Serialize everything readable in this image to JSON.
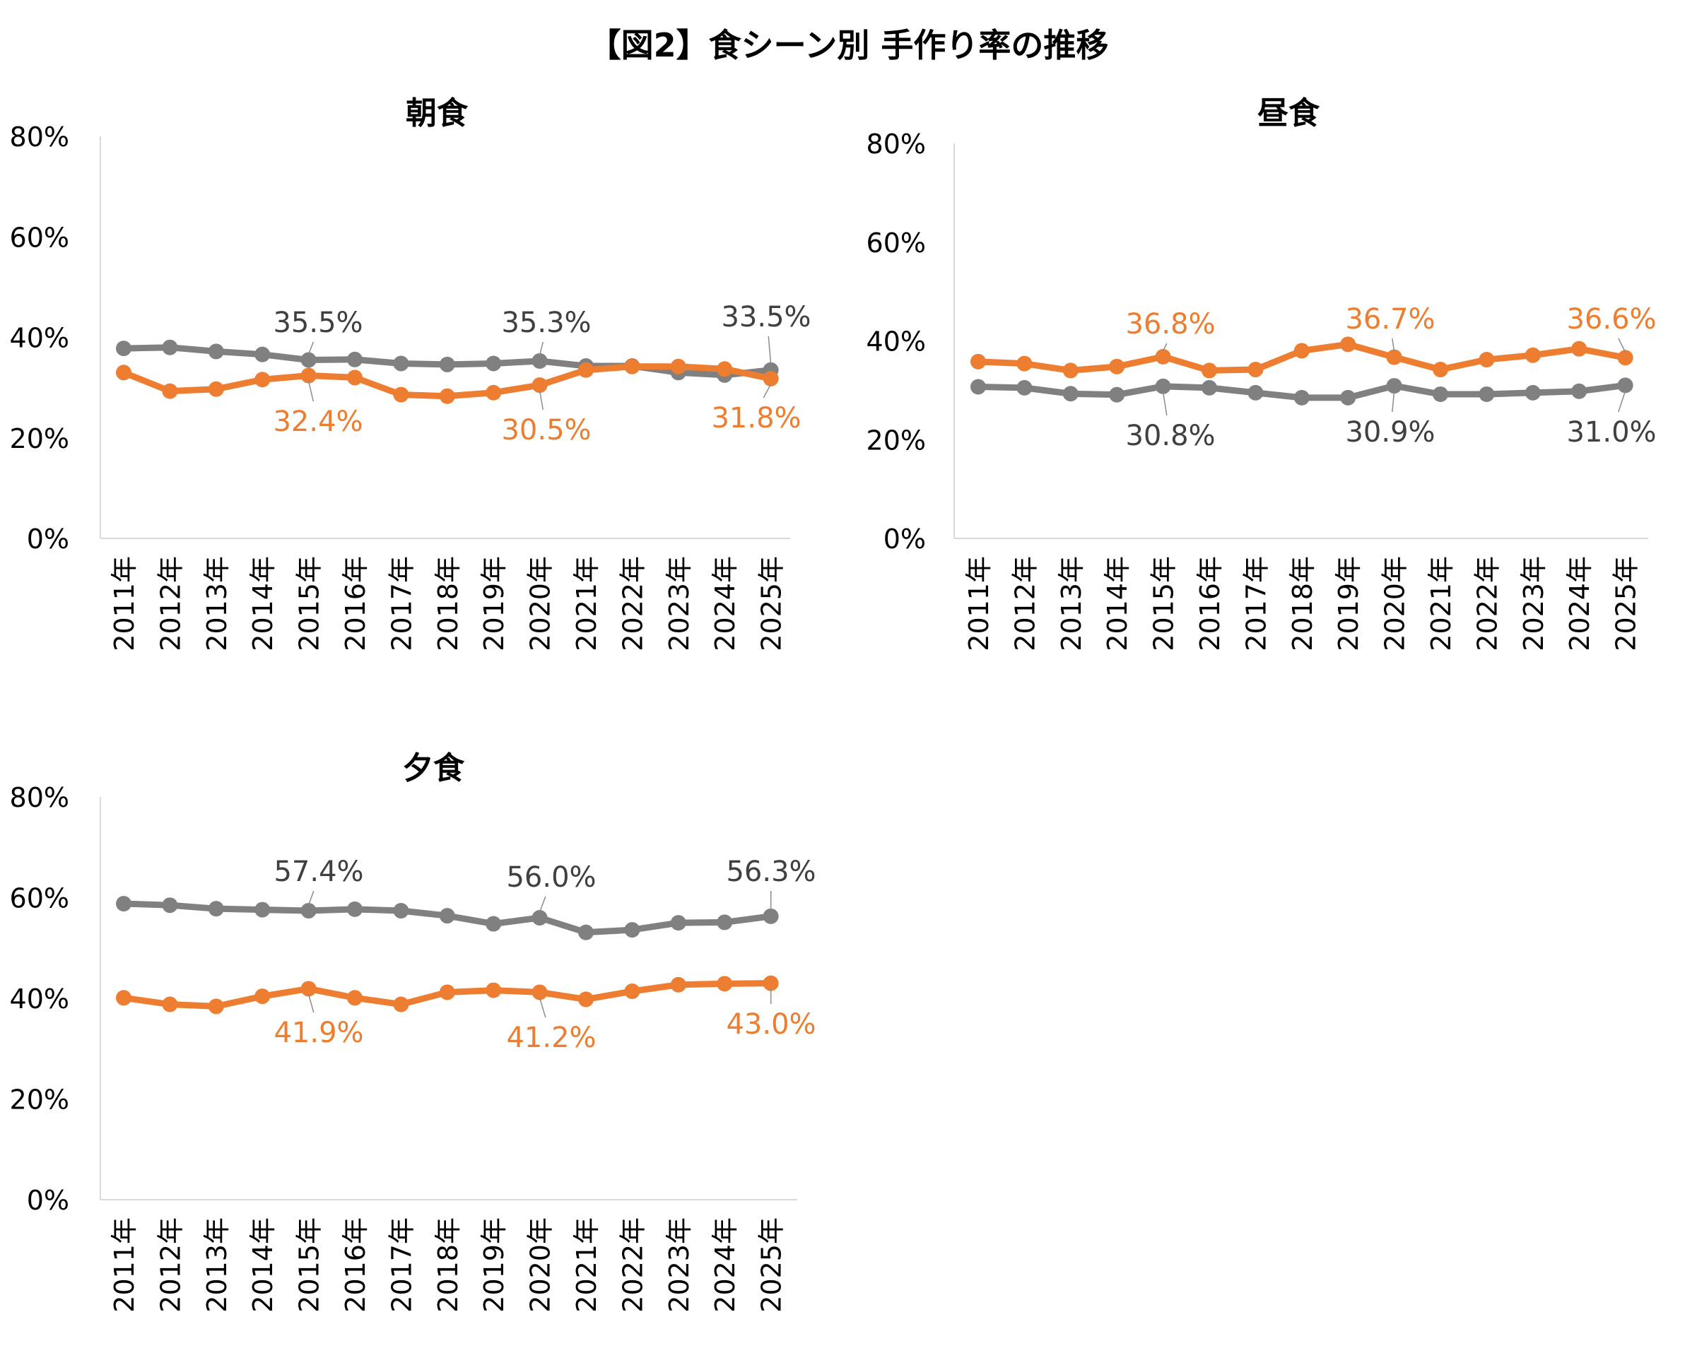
{
  "title": "【図2】食シーン別 手作り率の推移",
  "colors": {
    "gray": "#808080",
    "orange": "#ED7D31",
    "axis": "#d9d9d9",
    "text": "#404040"
  },
  "chart_data": [
    {
      "type": "line",
      "title": "朝食",
      "categories": [
        "2011年",
        "2012年",
        "2013年",
        "2014年",
        "2015年",
        "2016年",
        "2017年",
        "2018年",
        "2019年",
        "2020年",
        "2021年",
        "2022年",
        "2023年",
        "2024年",
        "2025年"
      ],
      "ylim": [
        0,
        80
      ],
      "yticks": [
        "0%",
        "20%",
        "40%",
        "60%",
        "80%"
      ],
      "series": [
        {
          "name": "gray",
          "values": [
            37.8,
            38.0,
            37.2,
            36.6,
            35.5,
            35.6,
            34.8,
            34.6,
            34.8,
            35.3,
            34.3,
            34.3,
            33.0,
            32.5,
            33.5
          ],
          "labels": [
            {
              "index": 4,
              "text": "35.5%"
            },
            {
              "index": 9,
              "text": "35.3%"
            },
            {
              "index": 14,
              "text": "33.5%"
            }
          ]
        },
        {
          "name": "orange",
          "values": [
            33.0,
            29.3,
            29.7,
            31.6,
            32.4,
            32.0,
            28.6,
            28.3,
            29.0,
            30.5,
            33.5,
            34.2,
            34.2,
            33.7,
            31.8
          ],
          "labels": [
            {
              "index": 4,
              "text": "32.4%"
            },
            {
              "index": 9,
              "text": "30.5%"
            },
            {
              "index": 14,
              "text": "31.8%"
            }
          ]
        }
      ]
    },
    {
      "type": "line",
      "title": "昼食",
      "categories": [
        "2011年",
        "2012年",
        "2013年",
        "2014年",
        "2015年",
        "2016年",
        "2017年",
        "2018年",
        "2019年",
        "2020年",
        "2021年",
        "2022年",
        "2023年",
        "2024年",
        "2025年"
      ],
      "ylim": [
        0,
        80
      ],
      "yticks": [
        "0%",
        "20%",
        "40%",
        "60%",
        "80%"
      ],
      "series": [
        {
          "name": "orange",
          "values": [
            35.8,
            35.4,
            34.0,
            34.8,
            36.8,
            34.0,
            34.2,
            38.0,
            39.3,
            36.7,
            34.2,
            36.2,
            37.1,
            38.4,
            36.6
          ],
          "labels": [
            {
              "index": 4,
              "text": "36.8%"
            },
            {
              "index": 9,
              "text": "36.7%"
            },
            {
              "index": 14,
              "text": "36.6%"
            }
          ]
        },
        {
          "name": "gray",
          "values": [
            30.7,
            30.5,
            29.3,
            29.1,
            30.8,
            30.5,
            29.5,
            28.5,
            28.5,
            30.9,
            29.2,
            29.2,
            29.5,
            29.8,
            31.0
          ],
          "labels": [
            {
              "index": 4,
              "text": "30.8%"
            },
            {
              "index": 9,
              "text": "30.9%"
            },
            {
              "index": 14,
              "text": "31.0%"
            }
          ]
        }
      ]
    },
    {
      "type": "line",
      "title": "夕食",
      "categories": [
        "2011年",
        "2012年",
        "2013年",
        "2014年",
        "2015年",
        "2016年",
        "2017年",
        "2018年",
        "2019年",
        "2020年",
        "2021年",
        "2022年",
        "2023年",
        "2024年",
        "2025年"
      ],
      "ylim": [
        0,
        80
      ],
      "yticks": [
        "0%",
        "20%",
        "40%",
        "60%",
        "80%"
      ],
      "series": [
        {
          "name": "gray",
          "values": [
            58.8,
            58.5,
            57.8,
            57.6,
            57.4,
            57.7,
            57.4,
            56.4,
            54.8,
            56.0,
            53.1,
            53.6,
            55.0,
            55.1,
            56.3
          ],
          "labels": [
            {
              "index": 4,
              "text": "57.4%"
            },
            {
              "index": 9,
              "text": "56.0%"
            },
            {
              "index": 14,
              "text": "56.3%"
            }
          ]
        },
        {
          "name": "orange",
          "values": [
            40.1,
            38.8,
            38.4,
            40.4,
            41.9,
            40.1,
            38.8,
            41.2,
            41.6,
            41.2,
            39.8,
            41.4,
            42.7,
            42.9,
            43.0
          ],
          "labels": [
            {
              "index": 4,
              "text": "41.9%"
            },
            {
              "index": 9,
              "text": "41.2%"
            },
            {
              "index": 14,
              "text": "43.0%"
            }
          ]
        }
      ]
    }
  ]
}
